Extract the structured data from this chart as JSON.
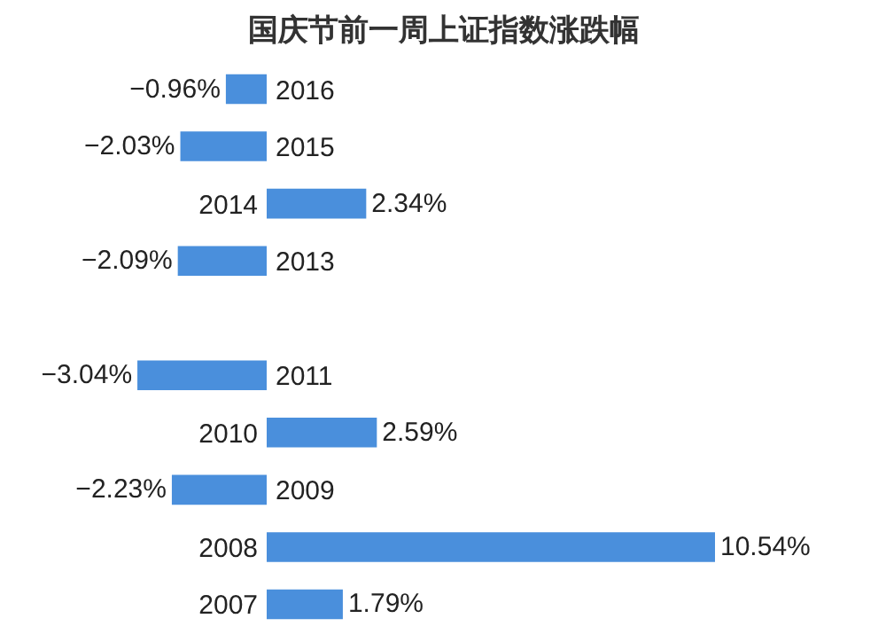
{
  "chart_data": {
    "type": "bar",
    "orientation": "horizontal",
    "title": "国庆节前一周上证指数涨跌幅",
    "categories": [
      "2016",
      "2015",
      "2014",
      "2013",
      null,
      "2011",
      "2010",
      "2009",
      "2008",
      "2007"
    ],
    "values": [
      -0.96,
      -2.03,
      2.34,
      -2.09,
      null,
      -3.04,
      2.59,
      -2.23,
      10.54,
      1.79
    ],
    "value_labels": [
      "−0.96%",
      "−2.03%",
      "2.34%",
      "−2.09%",
      null,
      "−3.04%",
      "2.59%",
      "−2.23%",
      "10.54%",
      "1.79%"
    ],
    "color": "#4a8fdc"
  }
}
